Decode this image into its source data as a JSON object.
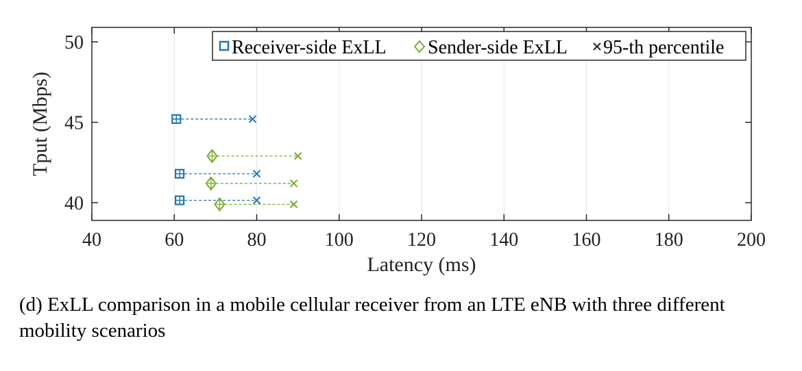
{
  "chart_data": {
    "type": "scatter",
    "xlabel": "Latency (ms)",
    "ylabel": "Tput (Mbps)",
    "xlim": [
      40,
      200
    ],
    "ylim": [
      38.9,
      50.9
    ],
    "xticks": [
      "40",
      "60",
      "80",
      "100",
      "120",
      "140",
      "160",
      "180",
      "200"
    ],
    "yticks": [
      "40",
      "45",
      "50"
    ],
    "grid": "vertical",
    "legend_position": "top-right",
    "legend": [
      "Receiver-side ExLL",
      "Sender-side ExLL",
      "95-th percentile"
    ],
    "colors": {
      "receiver": "#1f77b4",
      "sender": "#77ac30",
      "axis": "#262626",
      "grid": "#e6e6e6"
    },
    "series": [
      {
        "name": "Receiver-side ExLL",
        "marker": "square",
        "points": [
          {
            "avg": 60.5,
            "p95": 79.0,
            "y": 45.2
          },
          {
            "avg": 61.3,
            "p95": 80.0,
            "y": 41.8
          },
          {
            "avg": 61.3,
            "p95": 80.0,
            "y": 40.15
          }
        ]
      },
      {
        "name": "Sender-side ExLL",
        "marker": "diamond",
        "points": [
          {
            "avg": 69.2,
            "p95": 90.0,
            "y": 42.9
          },
          {
            "avg": 68.9,
            "p95": 89.0,
            "y": 41.2
          },
          {
            "avg": 71.0,
            "p95": 89.0,
            "y": 39.9
          }
        ]
      }
    ]
  },
  "caption": "(d) ExLL comparison in a mobile cellular receiver from an LTE eNB with three different mobility scenarios"
}
